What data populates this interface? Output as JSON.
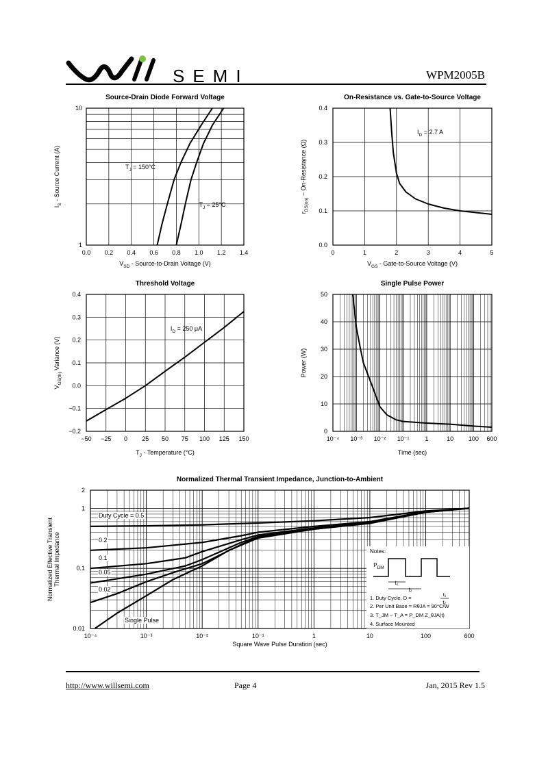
{
  "header": {
    "logo_text": "SEMI",
    "part_number": "WPM2005B"
  },
  "footer": {
    "url": "http://www.willsemi.com",
    "page": "Page  4",
    "date": "Jan,  2015 Rev 1.5"
  },
  "chart_data": [
    {
      "id": "c1",
      "type": "line",
      "title": "Source-Drain Diode Forward Voltage",
      "xlabel": "V_SD  -  Source-to-Drain Voltage (V)",
      "ylabel": "I_S  -  Source Current (A)",
      "xlim": [
        0,
        1.4
      ],
      "ylim": [
        1,
        10
      ],
      "yscale": "log",
      "x_ticks": [
        "0.0",
        "0.2",
        "0.4",
        "0.6",
        "0.8",
        "1.0",
        "1.2",
        "1.4"
      ],
      "y_ticks": [
        "1",
        "10"
      ],
      "series": [
        {
          "label": "T_J = 150°C",
          "x": [
            0.63,
            0.67,
            0.72,
            0.78,
            0.84,
            0.92,
            1.02,
            1.12
          ],
          "y": [
            1,
            1.4,
            2,
            3,
            4,
            5.5,
            7.5,
            10
          ]
        },
        {
          "label": "T_J = 25°C",
          "x": [
            0.8,
            0.84,
            0.88,
            0.93,
            0.98,
            1.04,
            1.12,
            1.22
          ],
          "y": [
            1,
            1.4,
            2,
            3,
            4,
            5.5,
            7.5,
            10
          ]
        }
      ]
    },
    {
      "id": "c2",
      "type": "line",
      "title": "On-Resistance vs. Gate-to-Source Voltage",
      "xlabel": "V_GS - Gate-to-Source Voltage (V)",
      "ylabel": "r_DS(on)  -  On-Resistance (Ω)",
      "xlim": [
        0,
        5
      ],
      "ylim": [
        0,
        0.4
      ],
      "x_ticks": [
        "0",
        "1",
        "2",
        "3",
        "4",
        "5"
      ],
      "y_ticks": [
        "0.0",
        "0.1",
        "0.2",
        "0.3",
        "0.4"
      ],
      "annotation": "I_D = 2.7 A",
      "series": [
        {
          "label": "",
          "x": [
            1.8,
            1.85,
            1.9,
            2.0,
            2.1,
            2.3,
            2.6,
            3.0,
            3.5,
            4.0,
            4.5,
            5.0
          ],
          "y": [
            0.4,
            0.33,
            0.27,
            0.21,
            0.18,
            0.155,
            0.135,
            0.12,
            0.108,
            0.1,
            0.095,
            0.09
          ]
        }
      ]
    },
    {
      "id": "c3",
      "type": "line",
      "title": "Threshold Voltage",
      "xlabel": "T_J - Temperature (°C)",
      "ylabel": "V_GS(th)  Variance (V)",
      "xlim": [
        -50,
        150
      ],
      "ylim": [
        -0.2,
        0.4
      ],
      "x_ticks": [
        "−50",
        "−25",
        "0",
        "25",
        "50",
        "75",
        "100",
        "125",
        "150"
      ],
      "y_ticks": [
        "−0.2",
        "−0.1",
        "0.0",
        "0.1",
        "0.2",
        "0.3",
        "0.4"
      ],
      "annotation": "I_D = 250 μA",
      "series": [
        {
          "label": "",
          "x": [
            -50,
            -25,
            0,
            25,
            50,
            75,
            100,
            125,
            150
          ],
          "y": [
            -0.155,
            -0.105,
            -0.055,
            0.0,
            0.063,
            0.125,
            0.19,
            0.255,
            0.325
          ]
        }
      ]
    },
    {
      "id": "c4",
      "type": "line",
      "title": "Single Pulse Power",
      "xlabel": "Time (sec)",
      "ylabel": "Power  (W)",
      "xlim": [
        0.0001,
        600
      ],
      "xscale": "log",
      "ylim": [
        0,
        50
      ],
      "x_ticks": [
        "10⁻⁴",
        "10⁻³",
        "10⁻²",
        "10⁻¹",
        "1",
        "10",
        "100",
        "600"
      ],
      "y_ticks": [
        "0",
        "10",
        "20",
        "30",
        "40",
        "50"
      ],
      "series": [
        {
          "label": "",
          "x": [
            0.0007,
            0.001,
            0.0015,
            0.002,
            0.003,
            0.005,
            0.01,
            0.02,
            0.05,
            0.1,
            1,
            10,
            100,
            600
          ],
          "y": [
            50,
            38,
            30,
            25,
            21,
            16,
            9,
            6,
            4.2,
            3.6,
            3,
            2.6,
            1.9,
            1.5
          ]
        }
      ]
    },
    {
      "id": "c5",
      "type": "line",
      "title": "Normalized Thermal Transient Impedance, Junction-to-Ambient",
      "xlabel": "Square Wave Pulse Duration (sec)",
      "ylabel": "Normalized Effective Transient Thermal Impedance",
      "xlim": [
        0.0001,
        600
      ],
      "xscale": "log",
      "ylim": [
        0.01,
        2
      ],
      "yscale": "log",
      "x_ticks": [
        "10⁻⁴",
        "10⁻³",
        "10⁻²",
        "10⁻¹",
        "1",
        "10",
        "100",
        "600"
      ],
      "y_ticks": [
        "0.01",
        "0.1",
        "1",
        "2"
      ],
      "series": [
        {
          "label": "Duty Cycle = 0.5",
          "x": [
            0.0001,
            0.001,
            0.01,
            0.1,
            1,
            10,
            100,
            600
          ],
          "y": [
            0.5,
            0.51,
            0.53,
            0.57,
            0.62,
            0.7,
            0.9,
            1.0
          ]
        },
        {
          "label": "0.2",
          "x": [
            0.0001,
            0.001,
            0.01,
            0.05,
            0.1,
            1,
            10,
            100,
            600
          ],
          "y": [
            0.2,
            0.22,
            0.27,
            0.35,
            0.4,
            0.5,
            0.6,
            0.88,
            1.0
          ]
        },
        {
          "label": "0.1",
          "x": [
            0.0001,
            0.001,
            0.005,
            0.01,
            0.05,
            0.1,
            1,
            10,
            100,
            600
          ],
          "y": [
            0.1,
            0.12,
            0.15,
            0.19,
            0.3,
            0.36,
            0.47,
            0.58,
            0.87,
            1.0
          ]
        },
        {
          "label": "0.05",
          "x": [
            0.0001,
            0.001,
            0.005,
            0.01,
            0.05,
            0.1,
            1,
            10,
            100,
            600
          ],
          "y": [
            0.057,
            0.08,
            0.11,
            0.14,
            0.27,
            0.34,
            0.46,
            0.57,
            0.86,
            1.0
          ]
        },
        {
          "label": "0.02",
          "x": [
            0.0001,
            0.0003,
            0.001,
            0.003,
            0.01,
            0.05,
            0.1,
            1,
            10,
            100,
            600
          ],
          "y": [
            0.027,
            0.038,
            0.06,
            0.085,
            0.12,
            0.25,
            0.33,
            0.45,
            0.57,
            0.86,
            1.0
          ]
        },
        {
          "label": "Single Pulse",
          "x": [
            0.00012,
            0.0003,
            0.001,
            0.003,
            0.01,
            0.03,
            0.1,
            1,
            10,
            100,
            600
          ],
          "y": [
            0.01,
            0.018,
            0.035,
            0.065,
            0.11,
            0.2,
            0.32,
            0.45,
            0.56,
            0.86,
            1.0
          ]
        }
      ],
      "notes": {
        "title": "Notes:",
        "pdm": "P_DM",
        "t1": "t₁",
        "t2": "t₂",
        "line1": "1. Duty Cycle, D =",
        "duty_num": "t₁",
        "duty_den": "t₂",
        "line2": "2. Per Unit Base = RθJA = 90°C/W",
        "line3": "3. T_JM − T_A = P_DM Z_θJA(t)",
        "line4": "4. Surface Mounted"
      }
    }
  ]
}
